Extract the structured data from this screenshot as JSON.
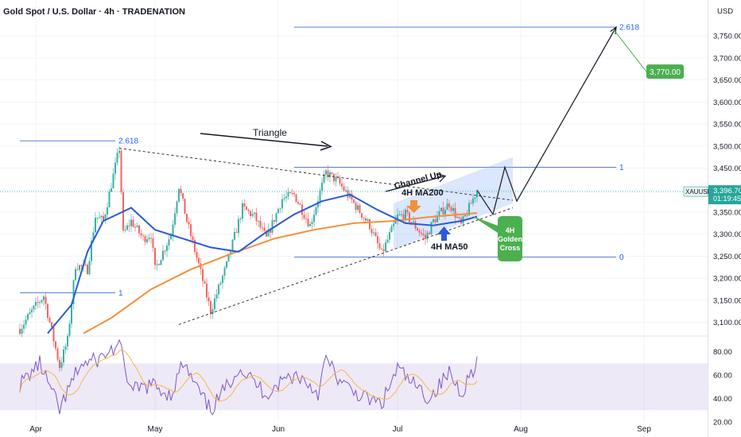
{
  "header": {
    "title": "Gold Spot / U.S. Dollar · 4h · TRADENATION",
    "currency": "USD"
  },
  "colors": {
    "up": "#26a69a",
    "down": "#ef5350",
    "ma50": "#2a5bd7",
    "ma200": "#f0913a",
    "rsi": "#7e57c2",
    "rsi_ma": "#f5b94a",
    "fib": "#5b7fe0",
    "green_label": "#4caf50"
  },
  "chart_data": {
    "type": "candlestick",
    "x_tick_labels": [
      "Apr",
      "May",
      "Jun",
      "Jul",
      "Aug",
      "Sep"
    ],
    "y_tick_labels": [
      "3,750.00",
      "3,700.00",
      "3,650.00",
      "3,600.00",
      "3,550.00",
      "3,500.00",
      "3,450.00",
      "3,400.00",
      "3,350.00",
      "3,300.00",
      "3,250.00",
      "3,200.00",
      "3,150.00",
      "3,100.00"
    ],
    "ylim": [
      3075,
      3800
    ],
    "current_price": {
      "symbol": "XAUUSD",
      "value": "3,396.70",
      "countdown": "01:19:45"
    },
    "target_price": {
      "value": "3,770.00",
      "price": 3770
    },
    "rsi": {
      "tick_labels": [
        "80.00",
        "60.00",
        "40.00",
        "20.00"
      ],
      "ylim": [
        20,
        90
      ],
      "band": [
        30,
        70
      ]
    },
    "fib_levels": [
      {
        "label": "2.618",
        "price": 3512,
        "start": "2025-03-28",
        "end": "2025-04-21"
      },
      {
        "label": "1",
        "price": 3167,
        "start": "2025-03-28",
        "end": "2025-04-21"
      },
      {
        "label": "2.618",
        "price": 3770,
        "start": "2025-06-05",
        "end": "2025-08-25"
      },
      {
        "label": "1",
        "price": 3452,
        "start": "2025-06-05",
        "end": "2025-08-25"
      },
      {
        "label": "0",
        "price": 3248,
        "start": "2025-06-05",
        "end": "2025-08-25"
      }
    ],
    "annotations": {
      "triangle": "Triangle",
      "channel_up": "Channel Up",
      "ma200_label": "4H MA200",
      "ma50_label": "4H MA50",
      "golden_cross": [
        "4H",
        "Golden",
        "Cross"
      ]
    },
    "price_anchors": [
      [
        "2025-03-28",
        3085
      ],
      [
        "2025-03-31",
        3125
      ],
      [
        "2025-04-03",
        3160
      ],
      [
        "2025-04-07",
        3000
      ],
      [
        "2025-04-09",
        3060
      ],
      [
        "2025-04-11",
        3230
      ],
      [
        "2025-04-14",
        3220
      ],
      [
        "2025-04-16",
        3340
      ],
      [
        "2025-04-18",
        3330
      ],
      [
        "2025-04-22",
        3495
      ],
      [
        "2025-04-23",
        3300
      ],
      [
        "2025-04-25",
        3330
      ],
      [
        "2025-04-28",
        3290
      ],
      [
        "2025-04-30",
        3300
      ],
      [
        "2025-05-01",
        3220
      ],
      [
        "2025-05-05",
        3300
      ],
      [
        "2025-05-07",
        3410
      ],
      [
        "2025-05-09",
        3330
      ],
      [
        "2025-05-12",
        3230
      ],
      [
        "2025-05-15",
        3125
      ],
      [
        "2025-05-19",
        3230
      ],
      [
        "2025-05-23",
        3360
      ],
      [
        "2025-05-26",
        3340
      ],
      [
        "2025-05-29",
        3290
      ],
      [
        "2025-06-02",
        3380
      ],
      [
        "2025-06-05",
        3390
      ],
      [
        "2025-06-09",
        3320
      ],
      [
        "2025-06-13",
        3440
      ],
      [
        "2025-06-16",
        3420
      ],
      [
        "2025-06-20",
        3370
      ],
      [
        "2025-06-24",
        3320
      ],
      [
        "2025-06-27",
        3255
      ],
      [
        "2025-07-01",
        3340
      ],
      [
        "2025-07-03",
        3345
      ],
      [
        "2025-07-08",
        3290
      ],
      [
        "2025-07-10",
        3330
      ],
      [
        "2025-07-14",
        3370
      ],
      [
        "2025-07-17",
        3320
      ],
      [
        "2025-07-21",
        3400
      ]
    ],
    "ma50_anchors": [
      [
        "2025-04-04",
        3075
      ],
      [
        "2025-04-10",
        3140
      ],
      [
        "2025-04-14",
        3260
      ],
      [
        "2025-04-18",
        3330
      ],
      [
        "2025-04-25",
        3360
      ],
      [
        "2025-05-01",
        3310
      ],
      [
        "2025-05-08",
        3290
      ],
      [
        "2025-05-15",
        3270
      ],
      [
        "2025-05-22",
        3260
      ],
      [
        "2025-05-29",
        3305
      ],
      [
        "2025-06-05",
        3345
      ],
      [
        "2025-06-12",
        3375
      ],
      [
        "2025-06-19",
        3390
      ],
      [
        "2025-06-26",
        3355
      ],
      [
        "2025-07-03",
        3325
      ],
      [
        "2025-07-10",
        3320
      ],
      [
        "2025-07-17",
        3330
      ],
      [
        "2025-07-21",
        3340
      ]
    ],
    "ma200_anchors": [
      [
        "2025-04-13",
        3075
      ],
      [
        "2025-04-20",
        3110
      ],
      [
        "2025-04-30",
        3175
      ],
      [
        "2025-05-10",
        3220
      ],
      [
        "2025-05-20",
        3255
      ],
      [
        "2025-05-31",
        3290
      ],
      [
        "2025-06-10",
        3310
      ],
      [
        "2025-06-20",
        3325
      ],
      [
        "2025-06-30",
        3330
      ],
      [
        "2025-07-10",
        3340
      ],
      [
        "2025-07-21",
        3348
      ]
    ],
    "rsi_anchors": [
      [
        "2025-03-28",
        52
      ],
      [
        "2025-04-02",
        70
      ],
      [
        "2025-04-07",
        30
      ],
      [
        "2025-04-12",
        68
      ],
      [
        "2025-04-17",
        74
      ],
      [
        "2025-04-22",
        86
      ],
      [
        "2025-04-25",
        46
      ],
      [
        "2025-04-30",
        52
      ],
      [
        "2025-05-05",
        43
      ],
      [
        "2025-05-08",
        70
      ],
      [
        "2025-05-13",
        40
      ],
      [
        "2025-05-15",
        30
      ],
      [
        "2025-05-19",
        50
      ],
      [
        "2025-05-22",
        67
      ],
      [
        "2025-05-29",
        44
      ],
      [
        "2025-06-03",
        58
      ],
      [
        "2025-06-06",
        60
      ],
      [
        "2025-06-11",
        45
      ],
      [
        "2025-06-13",
        74
      ],
      [
        "2025-06-17",
        52
      ],
      [
        "2025-06-23",
        40
      ],
      [
        "2025-06-27",
        35
      ],
      [
        "2025-07-01",
        66
      ],
      [
        "2025-07-04",
        55
      ],
      [
        "2025-07-09",
        40
      ],
      [
        "2025-07-14",
        62
      ],
      [
        "2025-07-17",
        45
      ],
      [
        "2025-07-21",
        72
      ]
    ],
    "projection": [
      [
        "2025-07-21",
        3400
      ],
      [
        "2025-07-25",
        3345
      ],
      [
        "2025-07-28",
        3452
      ],
      [
        "2025-07-31",
        3375
      ],
      [
        "2025-08-25",
        3770
      ]
    ],
    "triangle_top": [
      [
        "2025-04-22",
        3495
      ],
      [
        "2025-07-30",
        3377
      ]
    ],
    "triangle_bottom": [
      [
        "2025-05-07",
        3095
      ],
      [
        "2025-07-30",
        3360
      ]
    ],
    "channel_poly": [
      [
        "2025-06-30",
        3265
      ],
      [
        "2025-07-30",
        3370
      ],
      [
        "2025-07-30",
        3475
      ],
      [
        "2025-06-30",
        3370
      ]
    ]
  }
}
